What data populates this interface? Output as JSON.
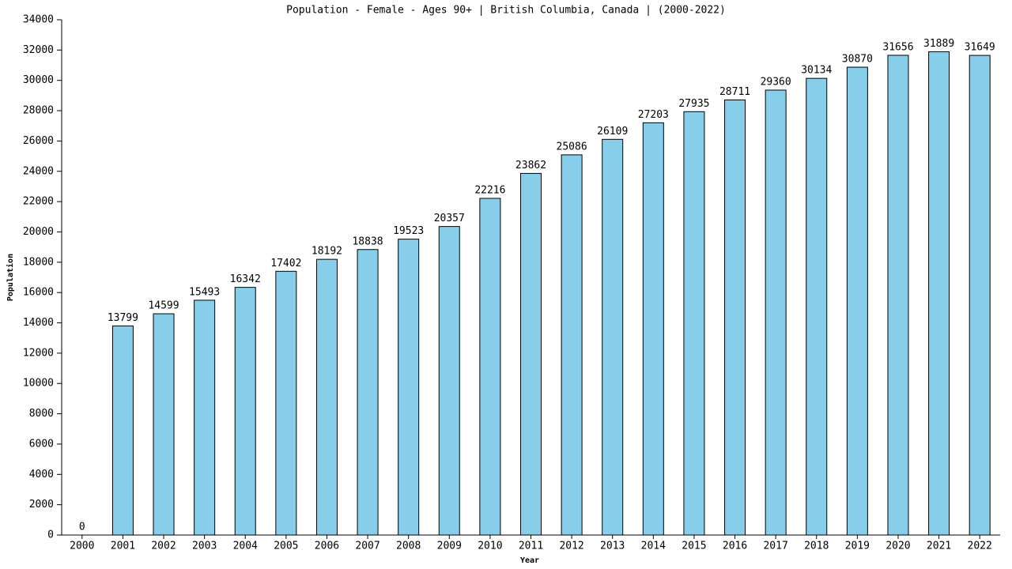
{
  "chart_data": {
    "type": "bar",
    "title": "Population - Female - Ages 90+ | British Columbia, Canada |  (2000-2022)",
    "x_label": "Year",
    "y_label": "Population",
    "categories": [
      "2000",
      "2001",
      "2002",
      "2003",
      "2004",
      "2005",
      "2006",
      "2007",
      "2008",
      "2009",
      "2010",
      "2011",
      "2012",
      "2013",
      "2014",
      "2015",
      "2016",
      "2017",
      "2018",
      "2019",
      "2020",
      "2021",
      "2022"
    ],
    "values": [
      0,
      13799,
      14599,
      15493,
      16342,
      17402,
      18192,
      18838,
      19523,
      20357,
      22216,
      23862,
      25086,
      26109,
      27203,
      27935,
      28711,
      29360,
      30134,
      30870,
      31656,
      31889,
      31649
    ],
    "color": "#87ceeb",
    "ylim": [
      0,
      34000
    ],
    "yticks": [
      0,
      2000,
      4000,
      6000,
      8000,
      10000,
      12000,
      14000,
      16000,
      18000,
      20000,
      22000,
      24000,
      26000,
      28000,
      30000,
      32000,
      34000
    ]
  }
}
